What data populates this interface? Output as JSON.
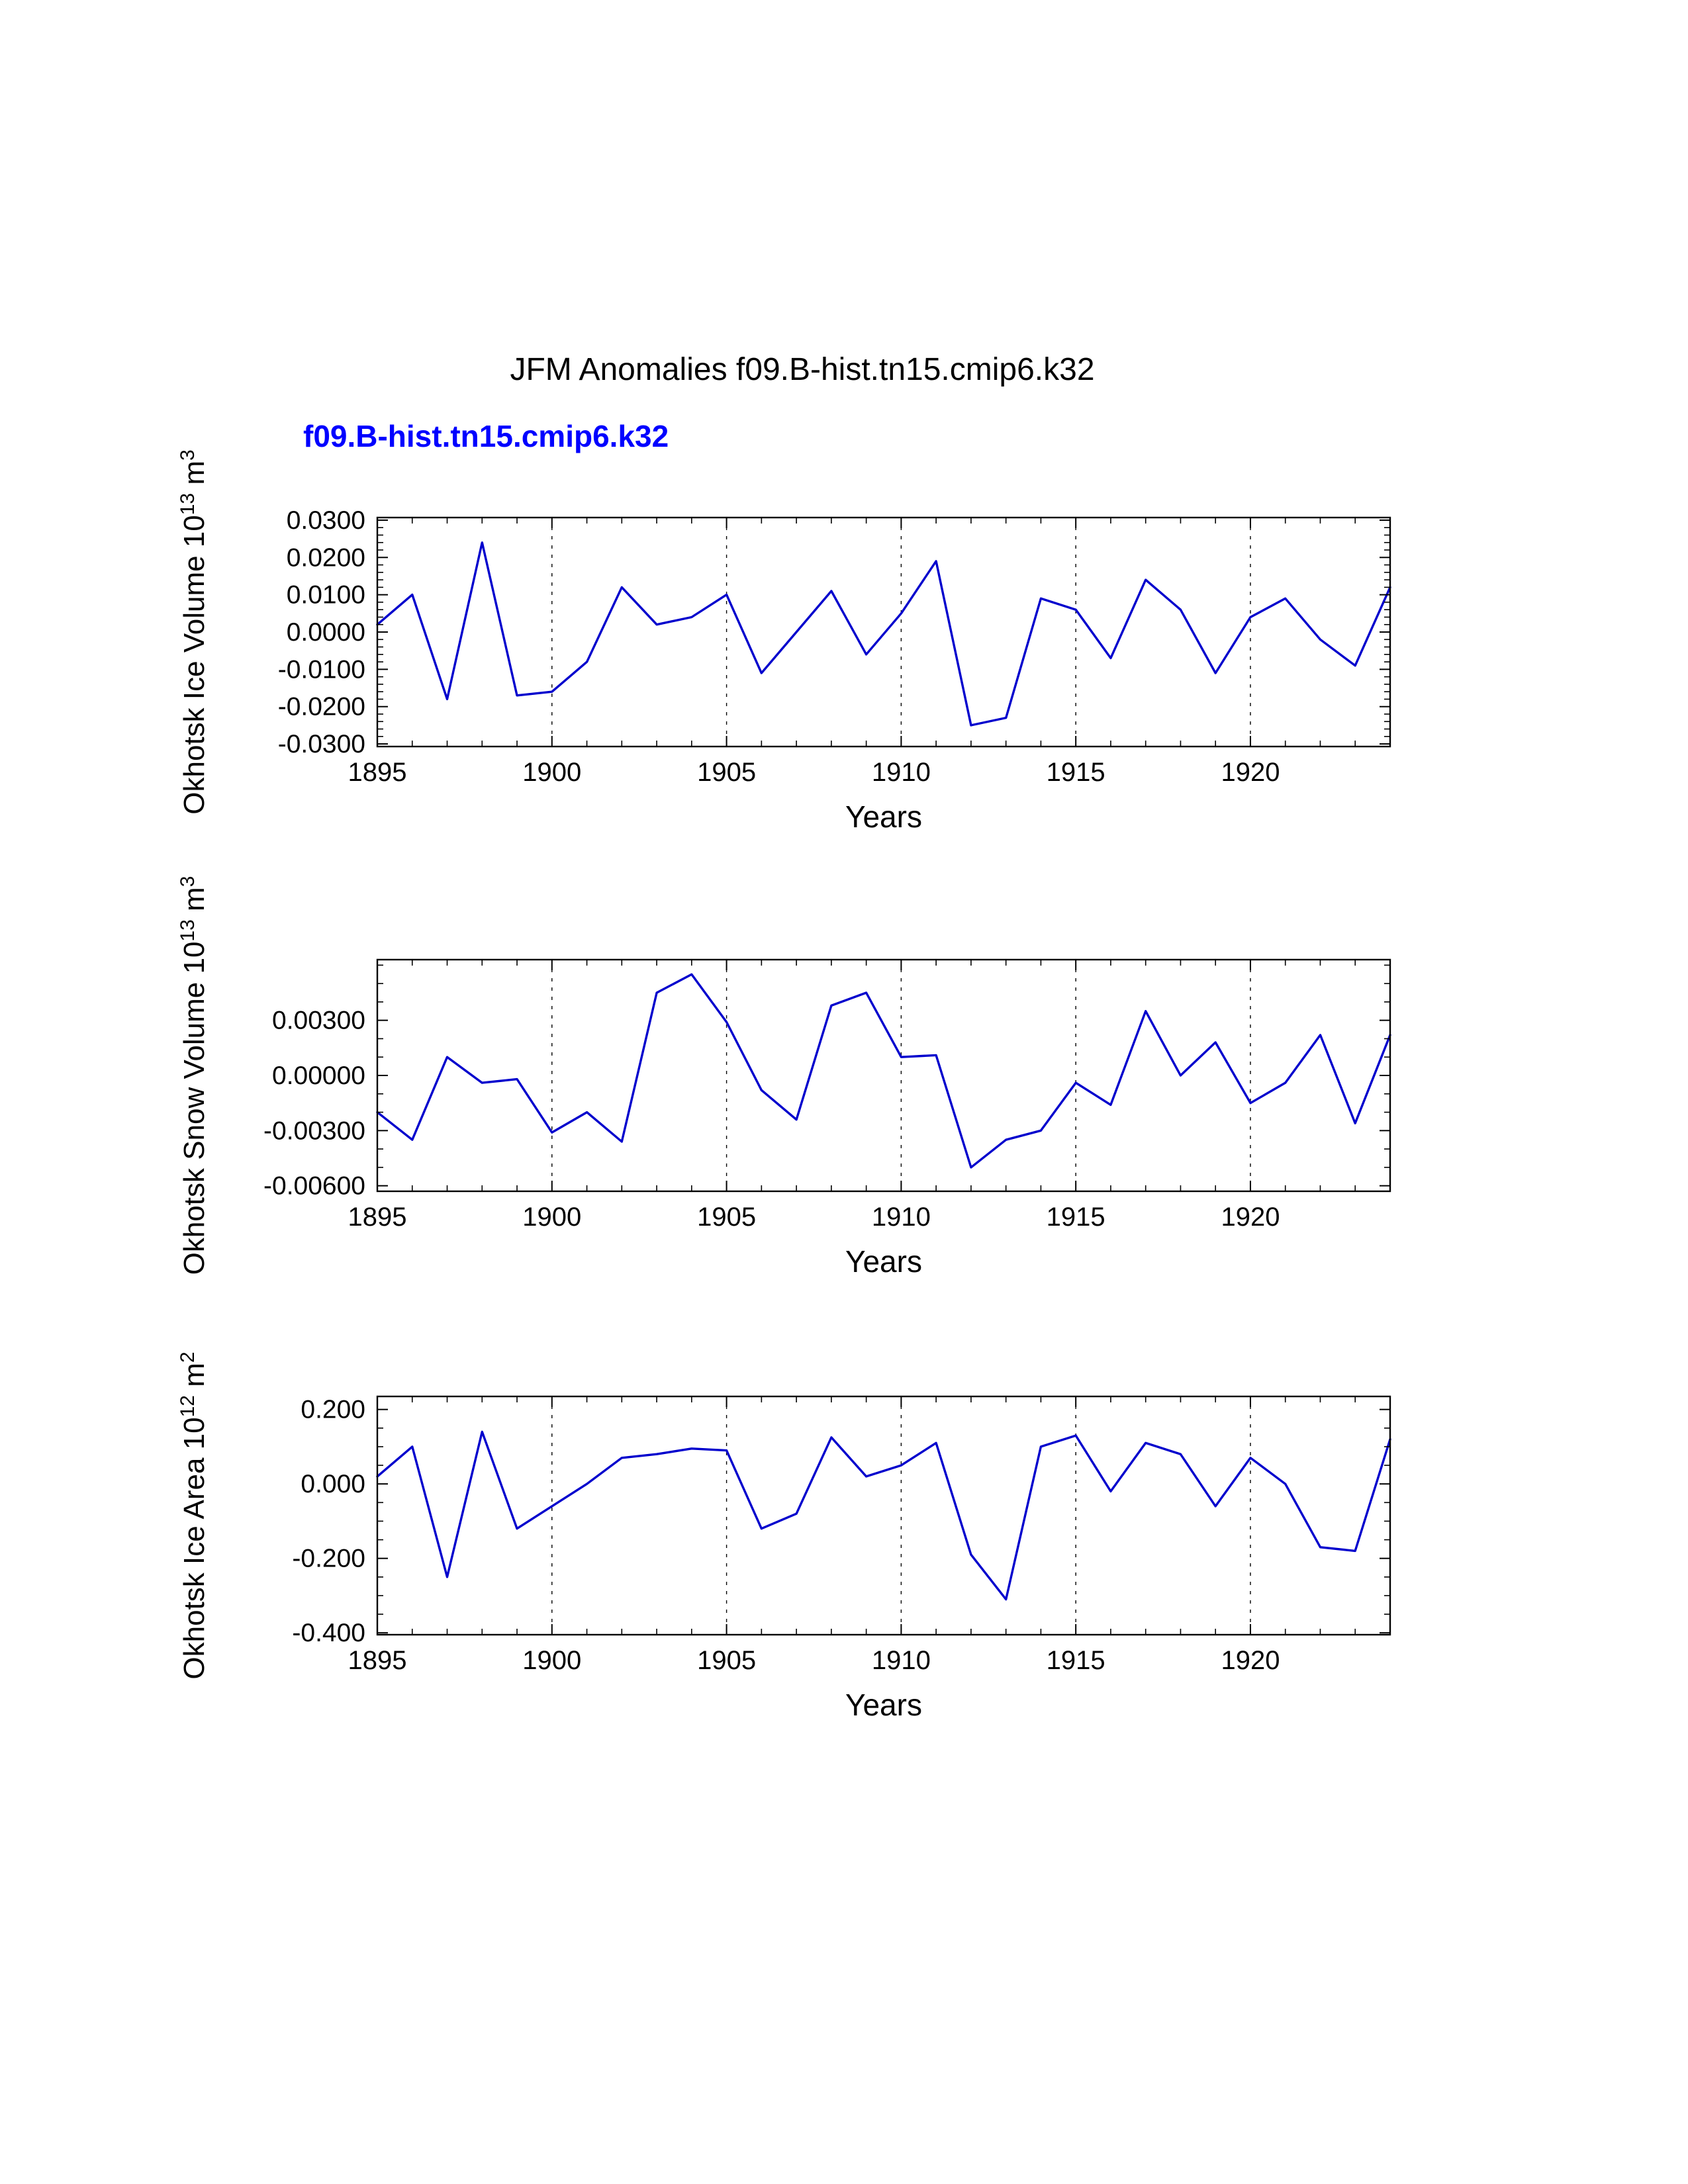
{
  "page": {
    "title": "JFM Anomalies f09.B-hist.tn15.cmip6.k32",
    "legend_label": "f09.B-hist.tn15.cmip6.k32",
    "legend_color": "#0000ff",
    "background": "#ffffff"
  },
  "chart_data": [
    {
      "type": "line",
      "name": "okhotsk-ice-volume",
      "ylabel_parts": [
        {
          "t": "Okhotsk Ice Volume 10"
        },
        {
          "s": "13"
        },
        {
          "t": " m"
        },
        {
          "s": "3"
        }
      ],
      "xlabel": "Years",
      "line_color": "#0000cd",
      "x": [
        1895,
        1896,
        1897,
        1898,
        1899,
        1900,
        1901,
        1902,
        1903,
        1904,
        1905,
        1906,
        1907,
        1908,
        1909,
        1910,
        1911,
        1912,
        1913,
        1914,
        1915,
        1916,
        1917,
        1918,
        1919,
        1920,
        1921,
        1922,
        1923,
        1924
      ],
      "values": [
        0.002,
        0.01,
        -0.018,
        0.024,
        -0.017,
        -0.016,
        -0.008,
        0.012,
        0.002,
        0.004,
        0.01,
        -0.011,
        0.0,
        0.011,
        -0.006,
        0.005,
        0.019,
        -0.025,
        -0.023,
        0.009,
        0.006,
        -0.007,
        0.014,
        0.006,
        -0.011,
        0.004,
        0.009,
        -0.002,
        -0.009,
        0.012
      ],
      "xlim": [
        1895,
        1924
      ],
      "ylim": [
        -0.0307,
        0.0307
      ],
      "xticks": [
        1895,
        1900,
        1905,
        1910,
        1915,
        1920
      ],
      "grid_x": [
        1900,
        1905,
        1910,
        1915,
        1920
      ],
      "yticks": [
        0.03,
        0.02,
        0.01,
        0,
        -0.01,
        -0.02,
        -0.03
      ],
      "ytick_labels": [
        "0.0300",
        "0.0200",
        "0.0100",
        "0.0000",
        "-0.0100",
        "-0.0200",
        "-0.0300"
      ],
      "yminor": 0.002,
      "grid": true,
      "legend_position": "top-left"
    },
    {
      "type": "line",
      "name": "okhotsk-snow-volume",
      "ylabel_parts": [
        {
          "t": "Okhotsk Snow Volume 10"
        },
        {
          "s": "13"
        },
        {
          "t": " m"
        },
        {
          "s": "3"
        }
      ],
      "xlabel": "Years",
      "line_color": "#0000cd",
      "x": [
        1895,
        1896,
        1897,
        1898,
        1899,
        1900,
        1901,
        1902,
        1903,
        1904,
        1905,
        1906,
        1907,
        1908,
        1909,
        1910,
        1911,
        1912,
        1913,
        1914,
        1915,
        1916,
        1917,
        1918,
        1919,
        1920,
        1921,
        1922,
        1923,
        1924
      ],
      "values": [
        -0.002,
        -0.0035,
        0.001,
        -0.0004,
        -0.0002,
        -0.0031,
        -0.002,
        -0.0036,
        0.0045,
        0.0055,
        0.0029,
        -0.0008,
        -0.0024,
        0.0038,
        0.0045,
        0.001,
        0.0011,
        -0.005,
        -0.0035,
        -0.003,
        -0.0004,
        -0.0016,
        0.0035,
        0.0,
        0.0018,
        -0.0015,
        -0.0004,
        0.0022,
        -0.0026,
        0.0022
      ],
      "xlim": [
        1895,
        1924
      ],
      "ylim": [
        -0.0063,
        0.0063
      ],
      "xticks": [
        1895,
        1900,
        1905,
        1910,
        1915,
        1920
      ],
      "grid_x": [
        1900,
        1905,
        1910,
        1915,
        1920
      ],
      "yticks": [
        0.003,
        0,
        -0.003,
        -0.006
      ],
      "ytick_labels": [
        "0.00300",
        "0.00000",
        "-0.00300",
        "-0.00600"
      ],
      "yminor": 0.001,
      "grid": true
    },
    {
      "type": "line",
      "name": "okhotsk-ice-area",
      "ylabel_parts": [
        {
          "t": "Okhotsk Ice Area 10"
        },
        {
          "s": "12"
        },
        {
          "t": " m"
        },
        {
          "s": "2"
        }
      ],
      "xlabel": "Years",
      "line_color": "#0000cd",
      "x": [
        1895,
        1896,
        1897,
        1898,
        1899,
        1900,
        1901,
        1902,
        1903,
        1904,
        1905,
        1906,
        1907,
        1908,
        1909,
        1910,
        1911,
        1912,
        1913,
        1914,
        1915,
        1916,
        1917,
        1918,
        1919,
        1920,
        1921,
        1922,
        1923,
        1924
      ],
      "values": [
        0.02,
        0.1,
        -0.25,
        0.14,
        -0.12,
        -0.06,
        0.0,
        0.07,
        0.08,
        0.095,
        0.09,
        -0.12,
        -0.08,
        0.125,
        0.02,
        0.05,
        0.11,
        -0.19,
        -0.31,
        0.1,
        0.13,
        -0.02,
        0.11,
        0.08,
        -0.06,
        0.07,
        0.0,
        -0.17,
        -0.18,
        0.12
      ],
      "xlim": [
        1895,
        1924
      ],
      "ylim": [
        -0.405,
        0.235
      ],
      "xticks": [
        1895,
        1900,
        1905,
        1910,
        1915,
        1920
      ],
      "grid_x": [
        1900,
        1905,
        1910,
        1915,
        1920
      ],
      "yticks": [
        0.2,
        0,
        -0.2,
        -0.4
      ],
      "ytick_labels": [
        "0.200",
        "0.000",
        "-0.200",
        "-0.400"
      ],
      "yminor": 0.05,
      "grid": true
    }
  ]
}
